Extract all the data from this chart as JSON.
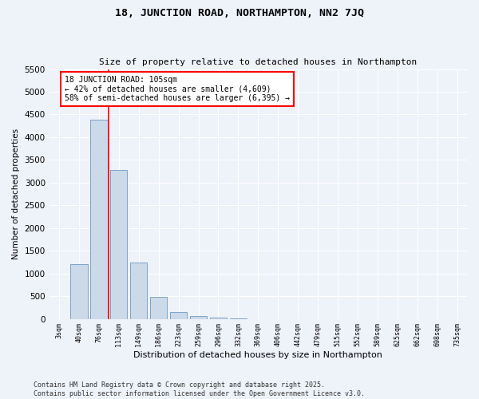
{
  "title": "18, JUNCTION ROAD, NORTHAMPTON, NN2 7JQ",
  "subtitle": "Size of property relative to detached houses in Northampton",
  "xlabel": "Distribution of detached houses by size in Northampton",
  "ylabel": "Number of detached properties",
  "categories": [
    "3sqm",
    "40sqm",
    "76sqm",
    "113sqm",
    "149sqm",
    "186sqm",
    "223sqm",
    "259sqm",
    "296sqm",
    "332sqm",
    "369sqm",
    "406sqm",
    "442sqm",
    "479sqm",
    "515sqm",
    "552sqm",
    "589sqm",
    "625sqm",
    "662sqm",
    "698sqm",
    "735sqm"
  ],
  "values": [
    0,
    1200,
    4380,
    3270,
    1240,
    480,
    155,
    60,
    30,
    10,
    0,
    0,
    0,
    0,
    0,
    0,
    0,
    0,
    0,
    0,
    0
  ],
  "bar_color": "#ccd9e8",
  "bar_edge_color": "#7ba3c8",
  "vline_color": "red",
  "annotation_text": "18 JUNCTION ROAD: 105sqm\n← 42% of detached houses are smaller (4,609)\n58% of semi-detached houses are larger (6,395) →",
  "ylim": [
    0,
    5500
  ],
  "yticks": [
    0,
    500,
    1000,
    1500,
    2000,
    2500,
    3000,
    3500,
    4000,
    4500,
    5000,
    5500
  ],
  "background_color": "#eef2f9",
  "grid_color": "#ffffff",
  "footer": "Contains HM Land Registry data © Crown copyright and database right 2025.\nContains public sector information licensed under the Open Government Licence v3.0."
}
